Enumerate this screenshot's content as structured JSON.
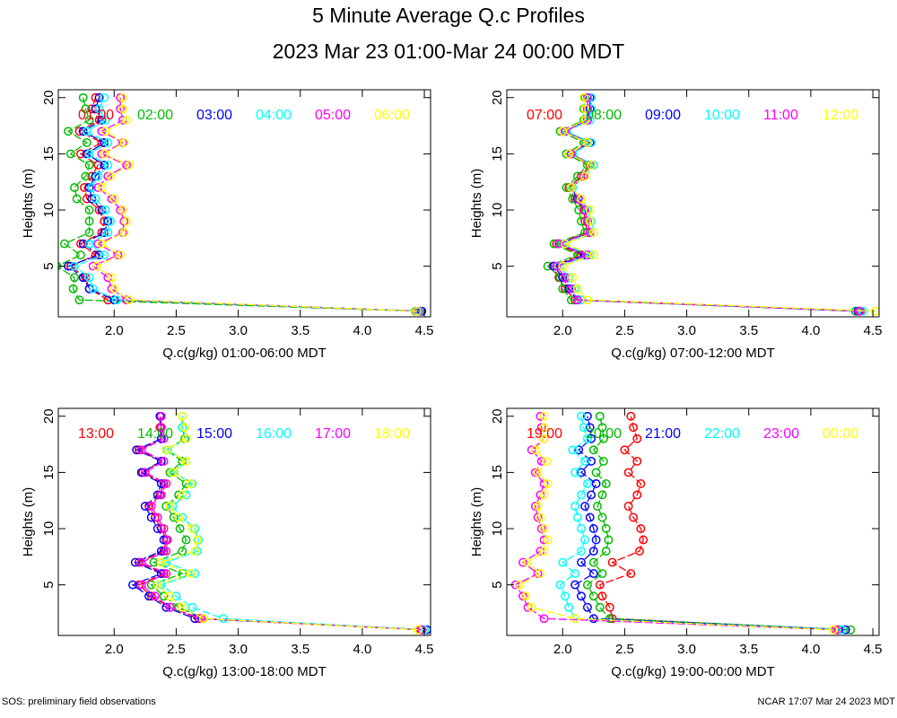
{
  "title": "5 Minute Average Q.c Profiles",
  "subtitle": "2023 Mar 23 01:00-Mar 24 00:00 MDT",
  "footer": {
    "left": "SOS: preliminary field observations",
    "right": "NCAR 17:07 Mar 24 2023 MDT"
  },
  "colors": [
    "#ff0000",
    "#00bb00",
    "#0000ff",
    "#00ffff",
    "#ff00ff",
    "#ffff00"
  ],
  "chart_data": [
    {
      "type": "line",
      "title": "",
      "xlabel": "Q.c(g/kg) 01:00-06:00 MDT",
      "ylabel": "Heights (m)",
      "xlim": [
        1.55,
        4.55
      ],
      "ylim": [
        0.5,
        20.7
      ],
      "xticks": [
        "2.0",
        "2.5",
        "3.0",
        "3.5",
        "4.0",
        "4.5"
      ],
      "yticks": [
        "5",
        "10",
        "15",
        "20"
      ],
      "heights": [
        1,
        2,
        3,
        4,
        5,
        6,
        7,
        8,
        9,
        10,
        11,
        12,
        13,
        14,
        15,
        16,
        17,
        18,
        19,
        20
      ],
      "series": [
        {
          "name": "01:00",
          "values": [
            4.47,
            1.95,
            1.8,
            1.77,
            1.65,
            1.85,
            1.73,
            1.9,
            1.92,
            1.88,
            1.78,
            1.76,
            1.82,
            1.87,
            1.73,
            1.9,
            1.72,
            1.88,
            1.82,
            1.85
          ]
        },
        {
          "name": "02:00",
          "values": [
            4.43,
            1.72,
            1.67,
            1.68,
            1.54,
            1.73,
            1.6,
            1.8,
            1.8,
            1.8,
            1.7,
            1.68,
            1.77,
            1.8,
            1.65,
            1.78,
            1.63,
            1.8,
            1.77,
            1.75
          ]
        },
        {
          "name": "03:00",
          "values": [
            4.48,
            2.0,
            1.8,
            1.75,
            1.63,
            1.88,
            1.75,
            1.92,
            1.95,
            1.9,
            1.82,
            1.8,
            1.85,
            1.92,
            1.78,
            1.92,
            1.75,
            1.9,
            1.85,
            1.88
          ]
        },
        {
          "name": "04:00",
          "values": [
            4.46,
            2.02,
            1.83,
            1.8,
            1.68,
            1.92,
            1.8,
            1.95,
            1.97,
            1.93,
            1.85,
            1.82,
            1.87,
            1.95,
            1.8,
            1.95,
            1.78,
            1.93,
            1.88,
            1.92
          ]
        },
        {
          "name": "05:00",
          "values": [
            4.45,
            2.1,
            1.98,
            1.95,
            1.83,
            2.03,
            1.87,
            2.07,
            2.08,
            2.05,
            1.98,
            1.87,
            1.95,
            2.1,
            1.9,
            2.07,
            1.9,
            2.07,
            2.05,
            2.05
          ]
        },
        {
          "name": "06:00",
          "values": [
            4.44,
            2.12,
            2.0,
            1.98,
            1.86,
            2.05,
            1.9,
            2.08,
            2.1,
            2.07,
            2.0,
            1.9,
            1.97,
            2.12,
            1.92,
            2.08,
            1.93,
            2.1,
            2.07,
            2.07
          ]
        }
      ]
    },
    {
      "type": "line",
      "title": "",
      "xlabel": "Q.c(g/kg) 07:00-12:00 MDT",
      "ylabel": "Heights (m)",
      "xlim": [
        1.55,
        4.55
      ],
      "ylim": [
        0.5,
        20.7
      ],
      "xticks": [
        "2.0",
        "2.5",
        "3.0",
        "3.5",
        "4.0",
        "4.5"
      ],
      "yticks": [
        "5",
        "10",
        "15",
        "20"
      ],
      "heights": [
        1,
        2,
        3,
        4,
        5,
        6,
        7,
        8,
        9,
        10,
        11,
        12,
        13,
        14,
        15,
        16,
        17,
        18,
        19,
        20
      ],
      "series": [
        {
          "name": "07:00",
          "values": [
            4.4,
            2.1,
            2.02,
            1.97,
            1.92,
            2.15,
            1.95,
            2.2,
            2.18,
            2.17,
            2.1,
            2.05,
            2.15,
            2.22,
            2.05,
            2.2,
            2.0,
            2.18,
            2.2,
            2.2
          ]
        },
        {
          "name": "08:00",
          "values": [
            4.36,
            2.07,
            2.0,
            1.98,
            1.88,
            2.12,
            1.93,
            2.18,
            2.15,
            2.13,
            2.08,
            2.03,
            2.12,
            2.2,
            2.03,
            2.17,
            1.98,
            2.17,
            2.17,
            2.18
          ]
        },
        {
          "name": "09:00",
          "values": [
            4.38,
            2.12,
            2.05,
            2.0,
            1.93,
            2.18,
            1.97,
            2.22,
            2.2,
            2.18,
            2.12,
            2.07,
            2.17,
            2.23,
            2.07,
            2.22,
            2.02,
            2.2,
            2.22,
            2.22
          ]
        },
        {
          "name": "10:00",
          "values": [
            4.42,
            2.15,
            2.1,
            2.05,
            1.97,
            2.22,
            2.0,
            2.25,
            2.23,
            2.2,
            2.15,
            2.08,
            2.18,
            2.25,
            2.08,
            2.23,
            2.03,
            2.22,
            2.23,
            2.23
          ]
        },
        {
          "name": "11:00",
          "values": [
            4.39,
            2.12,
            2.07,
            2.02,
            1.95,
            2.2,
            1.97,
            2.22,
            2.2,
            2.18,
            2.13,
            2.07,
            2.17,
            2.23,
            2.07,
            2.2,
            2.02,
            2.2,
            2.2,
            2.2
          ]
        },
        {
          "name": "12:00",
          "values": [
            4.52,
            2.2,
            2.12,
            2.08,
            2.0,
            2.25,
            2.02,
            2.25,
            2.22,
            2.22,
            2.15,
            2.07,
            2.18,
            2.23,
            2.05,
            2.2,
            2.0,
            2.18,
            2.18,
            2.17
          ]
        }
      ]
    },
    {
      "type": "line",
      "title": "",
      "xlabel": "Q.c(g/kg) 13:00-18:00 MDT",
      "ylabel": "Heights (m)",
      "xlim": [
        1.55,
        4.55
      ],
      "ylim": [
        0.5,
        20.7
      ],
      "xticks": [
        "2.0",
        "2.5",
        "3.0",
        "3.5",
        "4.0",
        "4.5"
      ],
      "yticks": [
        "5",
        "10",
        "15",
        "20"
      ],
      "heights": [
        1,
        2,
        3,
        4,
        5,
        6,
        7,
        8,
        9,
        10,
        11,
        12,
        13,
        14,
        15,
        16,
        17,
        18,
        19,
        20
      ],
      "series": [
        {
          "name": "13:00",
          "values": [
            4.47,
            2.68,
            2.45,
            2.3,
            2.2,
            2.4,
            2.2,
            2.4,
            2.42,
            2.38,
            2.33,
            2.28,
            2.37,
            2.4,
            2.23,
            2.38,
            2.2,
            2.38,
            2.37,
            2.37
          ]
        },
        {
          "name": "14:00",
          "values": [
            4.5,
            2.72,
            2.52,
            2.4,
            2.3,
            2.55,
            2.32,
            2.55,
            2.58,
            2.53,
            2.48,
            2.42,
            2.52,
            2.58,
            2.45,
            2.55,
            2.42,
            2.57,
            2.55,
            2.55
          ]
        },
        {
          "name": "15:00",
          "values": [
            4.52,
            2.65,
            2.42,
            2.28,
            2.15,
            2.38,
            2.17,
            2.38,
            2.4,
            2.35,
            2.3,
            2.25,
            2.35,
            2.38,
            2.22,
            2.38,
            2.18,
            2.38,
            2.38,
            2.37
          ]
        },
        {
          "name": "16:00",
          "values": [
            4.5,
            2.88,
            2.63,
            2.5,
            2.38,
            2.65,
            2.42,
            2.67,
            2.68,
            2.65,
            2.55,
            2.47,
            2.58,
            2.63,
            2.48,
            2.58,
            2.43,
            2.58,
            2.55,
            2.55
          ]
        },
        {
          "name": "17:00",
          "values": [
            4.48,
            2.7,
            2.45,
            2.33,
            2.22,
            2.42,
            2.22,
            2.42,
            2.43,
            2.4,
            2.35,
            2.3,
            2.38,
            2.42,
            2.25,
            2.4,
            2.22,
            2.4,
            2.38,
            2.38
          ]
        },
        {
          "name": "18:00",
          "values": [
            4.45,
            2.72,
            2.55,
            2.45,
            2.35,
            2.62,
            2.38,
            2.65,
            2.67,
            2.63,
            2.52,
            2.45,
            2.55,
            2.62,
            2.47,
            2.58,
            2.42,
            2.58,
            2.57,
            2.55
          ]
        }
      ]
    },
    {
      "type": "line",
      "title": "",
      "xlabel": "Q.c(g/kg) 19:00-00:00 MDT",
      "ylabel": "Heights (m)",
      "xlim": [
        1.55,
        4.55
      ],
      "ylim": [
        0.5,
        20.7
      ],
      "xticks": [
        "2.0",
        "2.5",
        "3.0",
        "3.5",
        "4.0",
        "4.5"
      ],
      "yticks": [
        "5",
        "10",
        "15",
        "20"
      ],
      "heights": [
        1,
        2,
        3,
        4,
        5,
        6,
        7,
        8,
        9,
        10,
        11,
        12,
        13,
        14,
        15,
        16,
        17,
        18,
        19,
        20
      ],
      "series": [
        {
          "name": "19:00",
          "values": [
            4.22,
            2.4,
            2.38,
            2.32,
            2.3,
            2.55,
            2.4,
            2.62,
            2.65,
            2.63,
            2.57,
            2.53,
            2.6,
            2.63,
            2.53,
            2.6,
            2.5,
            2.6,
            2.57,
            2.55
          ]
        },
        {
          "name": "20:00",
          "values": [
            4.32,
            2.38,
            2.3,
            2.25,
            2.2,
            2.32,
            2.25,
            2.35,
            2.37,
            2.35,
            2.32,
            2.28,
            2.32,
            2.35,
            2.27,
            2.33,
            2.25,
            2.33,
            2.32,
            2.3
          ]
        },
        {
          "name": "21:00",
          "values": [
            4.28,
            2.25,
            2.2,
            2.15,
            2.1,
            2.25,
            2.15,
            2.25,
            2.27,
            2.25,
            2.22,
            2.18,
            2.23,
            2.27,
            2.15,
            2.23,
            2.13,
            2.23,
            2.22,
            2.2
          ]
        },
        {
          "name": "22:00",
          "values": [
            4.25,
            2.1,
            2.05,
            2.02,
            1.98,
            2.1,
            2.0,
            2.15,
            2.18,
            2.15,
            2.12,
            2.1,
            2.15,
            2.2,
            2.1,
            2.18,
            2.08,
            2.2,
            2.17,
            2.15
          ]
        },
        {
          "name": "23:00",
          "values": [
            4.2,
            1.85,
            1.72,
            1.68,
            1.62,
            1.8,
            1.68,
            1.82,
            1.85,
            1.83,
            1.8,
            1.78,
            1.82,
            1.85,
            1.78,
            1.83,
            1.75,
            1.85,
            1.83,
            1.82
          ]
        },
        {
          "name": "00:00",
          "values": [
            4.18,
            2.1,
            1.75,
            1.7,
            1.65,
            1.82,
            1.72,
            1.85,
            1.88,
            1.85,
            1.82,
            1.8,
            1.85,
            1.88,
            1.8,
            1.87,
            1.78,
            1.85,
            1.85,
            1.85
          ]
        }
      ]
    }
  ]
}
